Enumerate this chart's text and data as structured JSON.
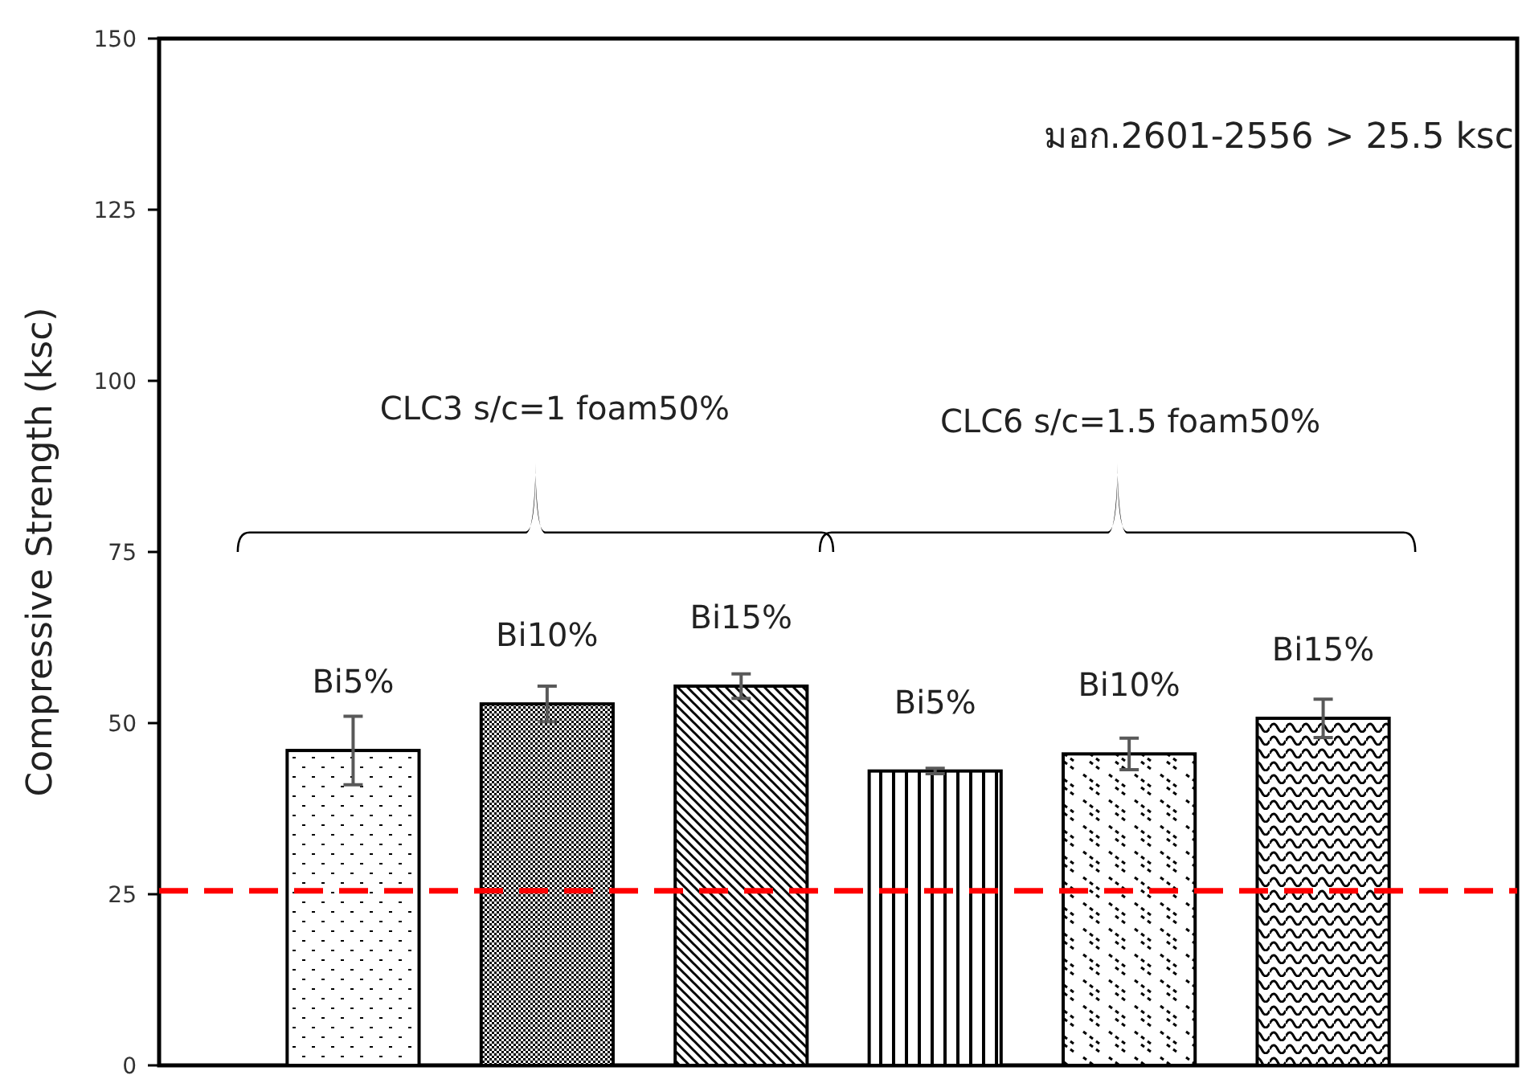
{
  "chart_data": {
    "type": "bar",
    "ylabel": "Compressive Strength (ksc)",
    "categories": [
      null,
      null,
      null,
      null,
      null,
      null
    ],
    "values": [
      46.0,
      52.8,
      55.4,
      43.0,
      45.5,
      50.7
    ],
    "errors": [
      5.0,
      2.6,
      1.8,
      0.4,
      2.3,
      2.8
    ],
    "color": "#000000",
    "ylim": [
      0,
      150
    ],
    "yticks": [
      0,
      25,
      50,
      75,
      100,
      125,
      150
    ],
    "grid": false,
    "ref_lines": [
      {
        "axis": "y",
        "value": 25.5,
        "color": "#ff0000",
        "line_style": "dashed"
      }
    ],
    "annotations": [
      "มอก.2601-2556 > 25.5 ksc",
      "CLC3 s/c=1 foam50%",
      "CLC6 s/c=1.5 foam50%",
      {
        "text": "Bi5%",
        "y": 46.0
      },
      {
        "text": "Bi10%",
        "y": 52.8
      },
      {
        "text": "Bi15%",
        "y": 55.4
      },
      {
        "text": "Bi5%",
        "y": 43.0
      },
      {
        "text": "Bi10%",
        "y": 45.5
      },
      {
        "text": "Bi15%",
        "y": 50.7
      }
    ]
  }
}
